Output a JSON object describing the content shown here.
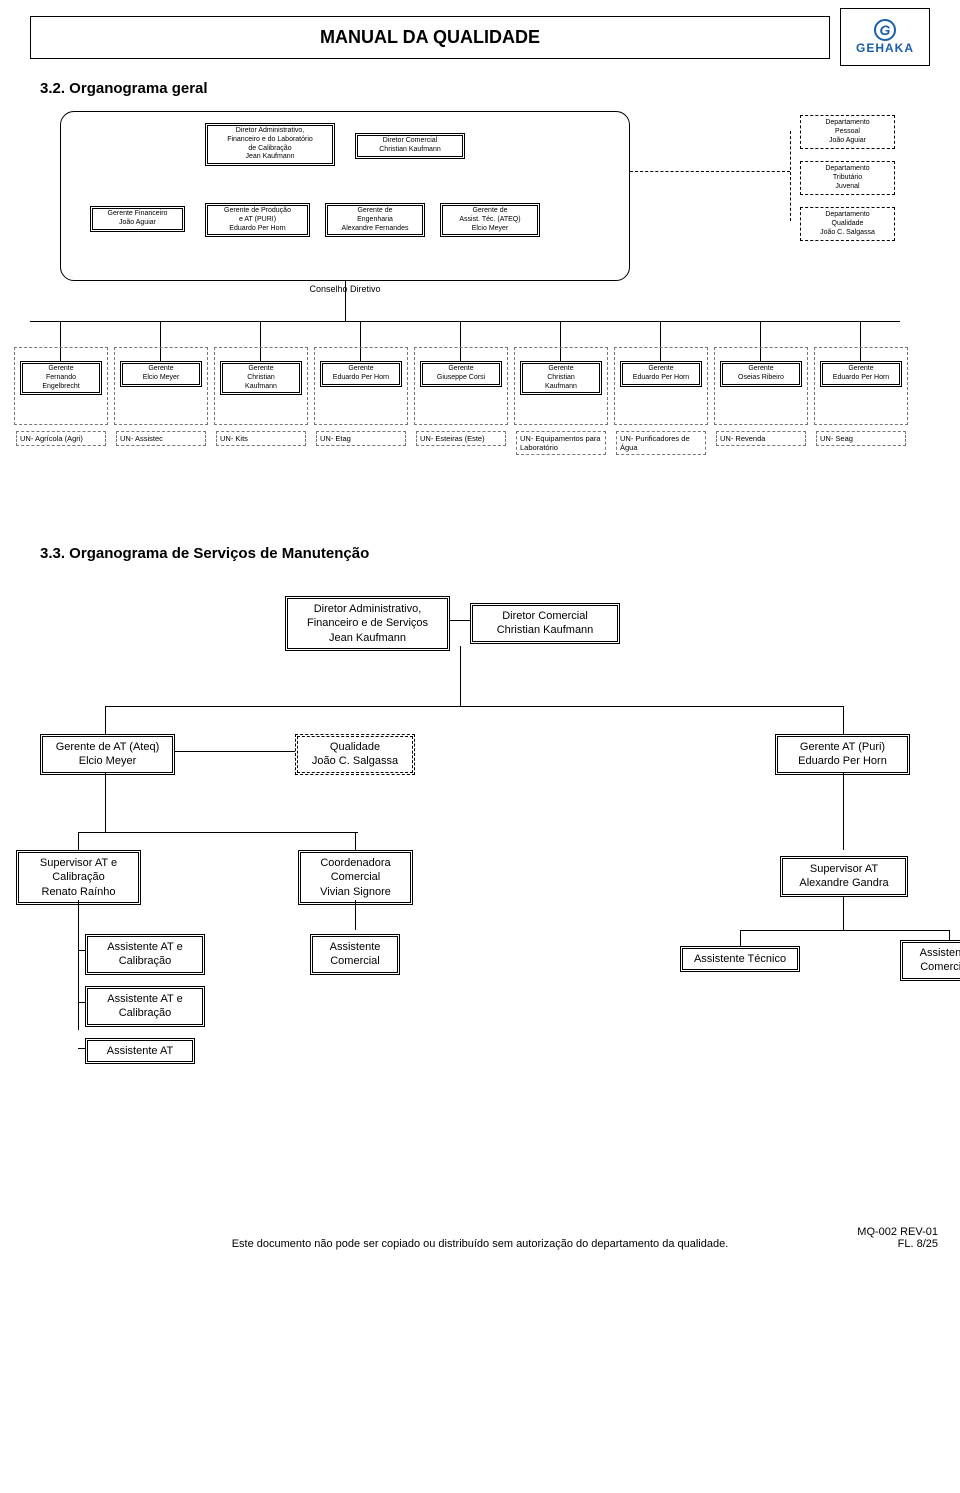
{
  "header": {
    "title": "MANUAL DA QUALIDADE",
    "logo_letter": "G",
    "logo_text": "GEHAKA",
    "logo_color": "#1b5fa8"
  },
  "section32": {
    "title": "3.2. Organograma geral",
    "council_label": "Conselho Diretivo",
    "council_inner_top": [
      {
        "lines": [
          "Diretor Administrativo,",
          "Financeiro e do Laboratório",
          "de Calibração",
          "Jean Kaufmann"
        ]
      },
      {
        "lines": [
          "Diretor Comercial",
          "Christian Kaufmann"
        ]
      }
    ],
    "council_inner_bottom": [
      {
        "lines": [
          "Gerente Financeiro",
          "João Aguiar"
        ]
      },
      {
        "lines": [
          "Gerente de Produção",
          "e AT (PURI)",
          "Eduardo Per Horn"
        ]
      },
      {
        "lines": [
          "Gerente de",
          "Engenharia",
          "Alexandre Fernandes"
        ]
      },
      {
        "lines": [
          "Gerente de",
          "Assist. Téc. (ATEQ)",
          "Elcio Meyer"
        ]
      }
    ],
    "side_depts": [
      {
        "lines": [
          "Departamento",
          "Pessoal",
          "João Aguiar"
        ]
      },
      {
        "lines": [
          "Departamento",
          "Tributário",
          "Juvenal"
        ]
      },
      {
        "lines": [
          "Departamento",
          "Qualidade",
          "João C. Salgassa"
        ]
      }
    ],
    "gerentes": [
      {
        "lines": [
          "Gerente",
          "Fernando",
          "Engelbrecht"
        ]
      },
      {
        "lines": [
          "Gerente",
          "Elcio Meyer"
        ]
      },
      {
        "lines": [
          "Gerente",
          "Christian",
          "Kaufmann"
        ]
      },
      {
        "lines": [
          "Gerente",
          "Eduardo Per Horn"
        ]
      },
      {
        "lines": [
          "Gerente",
          "Giuseppe Corsi"
        ]
      },
      {
        "lines": [
          "Gerente",
          "Christian",
          "Kaufmann"
        ]
      },
      {
        "lines": [
          "Gerente",
          "Eduardo Per Horn"
        ]
      },
      {
        "lines": [
          "Gerente",
          "Oseias Ribeiro"
        ]
      },
      {
        "lines": [
          "Gerente",
          "Eduardo Per Horn"
        ]
      }
    ],
    "un_labels": [
      "UN- Agrícola (Agri)",
      "UN- Assistec",
      "UN- Kits",
      "UN- Etag",
      "UN- Esteiras (Este)",
      "UN- Equipamentos para Laboratório",
      "UN- Purificadores de Água",
      "UN- Revenda",
      "UN- Seag"
    ]
  },
  "section33": {
    "title": "3.3. Organograma de Serviços de Manutenção",
    "nodes": {
      "dir_admin": {
        "lines": [
          "Diretor Administrativo,",
          "Financeiro e de Serviços",
          "Jean Kaufmann"
        ]
      },
      "dir_com": {
        "lines": [
          "Diretor Comercial",
          "Christian Kaufmann"
        ]
      },
      "ger_ateq": {
        "lines": [
          "Gerente de AT (Ateq)",
          "Elcio Meyer"
        ]
      },
      "qual": {
        "lines": [
          "Qualidade",
          "João C. Salgassa"
        ]
      },
      "ger_puri": {
        "lines": [
          "Gerente AT (Puri)",
          "Eduardo Per Horn"
        ]
      },
      "sup_cal": {
        "lines": [
          "Supervisor AT e",
          "Calibração",
          "Renato Raínho"
        ]
      },
      "coord": {
        "lines": [
          "Coordenadora",
          "Comercial",
          "Vivian Signore"
        ]
      },
      "sup_at": {
        "lines": [
          "Supervisor AT",
          "Alexandre Gandra"
        ]
      },
      "ass_cal1": {
        "lines": [
          "Assistente AT e",
          "Calibração"
        ]
      },
      "ass_com1": {
        "lines": [
          "Assistente",
          "Comercial"
        ]
      },
      "ass_tec": {
        "lines": [
          "Assistente Técnico"
        ]
      },
      "ass_com2": {
        "lines": [
          "Assistente",
          "Comercial"
        ]
      },
      "ass_cal2": {
        "lines": [
          "Assistente AT e",
          "Calibração"
        ]
      },
      "ass_at": {
        "lines": [
          "Assistente AT"
        ]
      }
    }
  },
  "footer": {
    "disclaimer": "Este documento não pode ser copiado ou distribuído sem autorização do departamento da qualidade.",
    "doc_code": "MQ-002 REV-01",
    "page_ref": "FL. 8/25"
  },
  "style": {
    "bg": "#ffffff",
    "text": "#000000",
    "font": "Arial",
    "border_color": "#000000"
  }
}
